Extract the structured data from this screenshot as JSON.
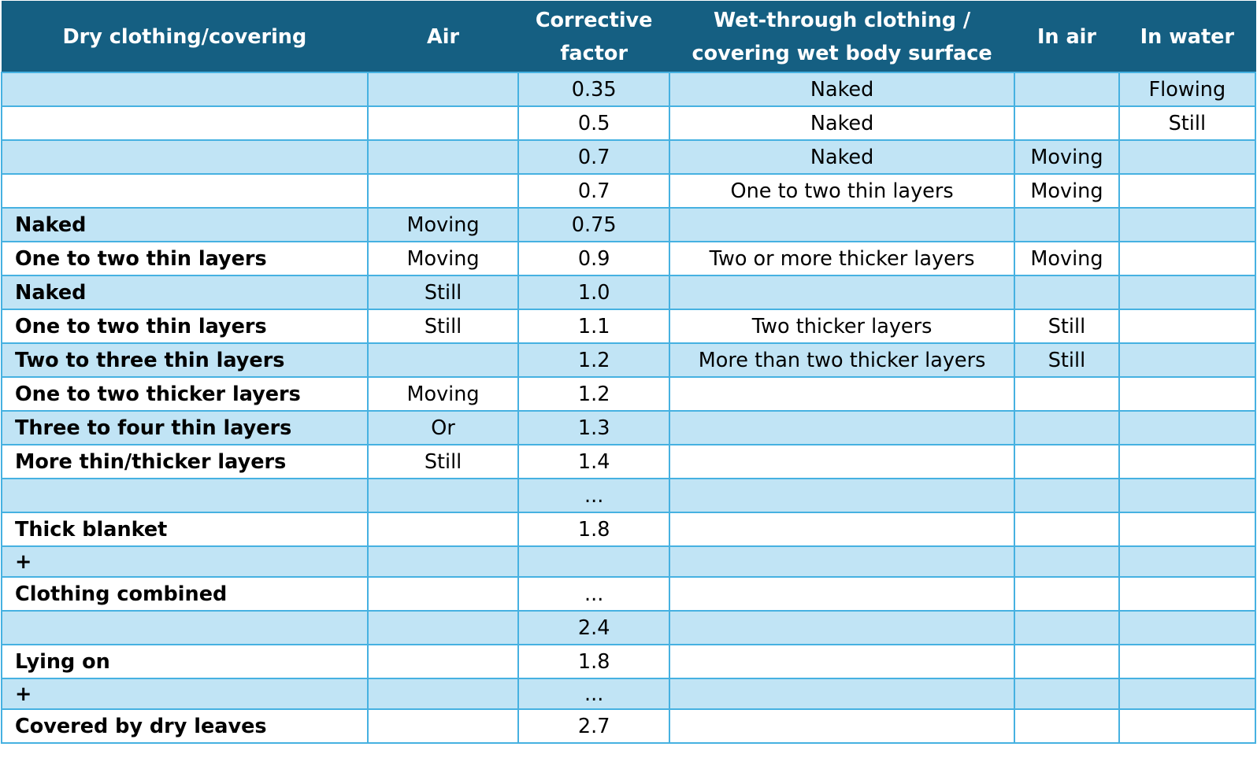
{
  "table": {
    "headers": [
      "Dry clothing/covering",
      "Air",
      "Corrective factor",
      "Wet-through clothing / covering wet body surface",
      "In air",
      "In water"
    ],
    "rows": [
      [
        "",
        "",
        "0.35",
        "Naked",
        "",
        "Flowing"
      ],
      [
        "",
        "",
        "0.5",
        "Naked",
        "",
        "Still"
      ],
      [
        "",
        "",
        "0.7",
        "Naked",
        "Moving",
        ""
      ],
      [
        "",
        "",
        "0.7",
        "One to two thin layers",
        "Moving",
        ""
      ],
      [
        "Naked",
        "Moving",
        "0.75",
        "",
        "",
        ""
      ],
      [
        "One to two thin layers",
        "Moving",
        "0.9",
        "Two or more thicker layers",
        "Moving",
        ""
      ],
      [
        "Naked",
        "Still",
        "1.0",
        "",
        "",
        ""
      ],
      [
        "One to two thin layers",
        "Still",
        "1.1",
        "Two thicker layers",
        "Still",
        ""
      ],
      [
        "Two to three thin layers",
        "",
        "1.2",
        "More than two thicker layers",
        "Still",
        ""
      ],
      [
        "One to two thicker layers",
        "Moving",
        "1.2",
        "",
        "",
        ""
      ],
      [
        "Three to four thin layers",
        "Or",
        "1.3",
        "",
        "",
        ""
      ],
      [
        "More thin/thicker layers",
        "Still",
        "1.4",
        "",
        "",
        ""
      ],
      [
        "",
        "",
        "...",
        "",
        "",
        ""
      ],
      [
        "Thick blanket",
        "",
        "1.8",
        "",
        "",
        ""
      ],
      [
        "+",
        "",
        "",
        "",
        "",
        ""
      ],
      [
        "Clothing combined",
        "",
        "...",
        "",
        "",
        ""
      ],
      [
        "",
        "",
        "2.4",
        "",
        "",
        ""
      ],
      [
        "Lying on",
        "",
        "1.8",
        "",
        "",
        ""
      ],
      [
        "+",
        "",
        "...",
        "",
        "",
        ""
      ],
      [
        "Covered by dry leaves",
        "",
        "2.7",
        "",
        "",
        ""
      ]
    ]
  },
  "colors": {
    "header_bg": "#155f82",
    "header_text": "#ffffff",
    "band": "#c1e4f5",
    "border": "#46b1e1"
  }
}
